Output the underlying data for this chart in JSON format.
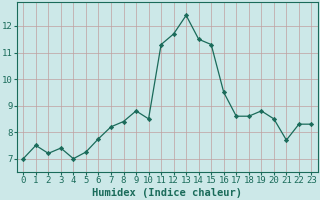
{
  "xlabel": "Humidex (Indice chaleur)",
  "x_values": [
    0,
    1,
    2,
    3,
    4,
    5,
    6,
    7,
    8,
    9,
    10,
    11,
    12,
    13,
    14,
    15,
    16,
    17,
    18,
    19,
    20,
    21,
    22,
    23
  ],
  "y_values": [
    7.0,
    7.5,
    7.2,
    7.4,
    7.0,
    7.25,
    7.75,
    8.2,
    8.4,
    8.8,
    8.5,
    11.3,
    11.7,
    12.4,
    11.5,
    11.3,
    9.5,
    8.6,
    8.6,
    8.8,
    8.5,
    7.7,
    8.3,
    8.3
  ],
  "ylim": [
    6.5,
    12.9
  ],
  "yticks": [
    7,
    8,
    9,
    10,
    11,
    12
  ],
  "line_color": "#1a6b5a",
  "marker": "D",
  "marker_size": 2.2,
  "bg_color": "#cce8e8",
  "grid_color": "#c0a0a0",
  "axis_color": "#1a6b5a",
  "label_color": "#1a6b5a",
  "tick_color": "#1a6b5a",
  "label_fontsize": 7.5,
  "tick_fontsize": 6.5
}
